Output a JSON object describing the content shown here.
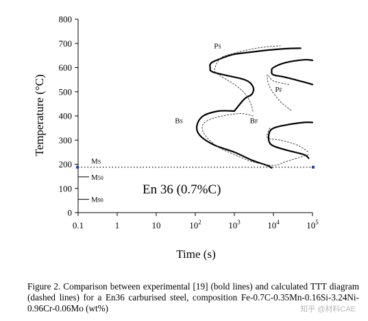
{
  "chart_data": {
    "type": "line",
    "xlabel": "Time (s)",
    "ylabel": "Temperature (°C)",
    "xscale": "log",
    "xlim": [
      0.1,
      100000
    ],
    "ylim": [
      0,
      800
    ],
    "x_ticks": [
      {
        "value": 0.1,
        "base": "0.1",
        "exp": ""
      },
      {
        "value": 1,
        "base": "1",
        "exp": ""
      },
      {
        "value": 10,
        "base": "10",
        "exp": ""
      },
      {
        "value": 100,
        "base": "10",
        "exp": "2"
      },
      {
        "value": 1000,
        "base": "10",
        "exp": "3"
      },
      {
        "value": 10000,
        "base": "10",
        "exp": "4"
      },
      {
        "value": 100000,
        "base": "10",
        "exp": "5"
      }
    ],
    "y_ticks": [
      0,
      100,
      200,
      300,
      400,
      500,
      600,
      700,
      800
    ],
    "annotation": "En 36 (0.7%C)",
    "grid": false,
    "series": [
      {
        "style": "bold",
        "x": [
          1000,
          1800,
          2800,
          3000,
          1800,
          300,
          240,
          260,
          500,
          1000,
          3000,
          7000,
          20000,
          50000
        ],
        "y": [
          420,
          470,
          490,
          520,
          550,
          580,
          600,
          620,
          640,
          655,
          665,
          672,
          678,
          680
        ]
      },
      {
        "style": "bold",
        "x": [
          100000,
          60000,
          20000,
          10000,
          9000,
          10000,
          20000,
          60000,
          100000
        ],
        "y": [
          630,
          632,
          620,
          600,
          585,
          570,
          560,
          540,
          530
        ]
      },
      {
        "style": "bold",
        "x": [
          1000,
          400,
          160,
          110,
          130,
          300,
          1000,
          3000,
          7000,
          9000
        ],
        "y": [
          420,
          420,
          400,
          360,
          320,
          280,
          250,
          215,
          195,
          185
        ]
      },
      {
        "style": "bold",
        "x": [
          100000,
          60000,
          20000,
          9000,
          7500,
          9000,
          20000,
          60000,
          80000
        ],
        "y": [
          373,
          373,
          362,
          345,
          310,
          280,
          260,
          240,
          225
        ]
      },
      {
        "style": "dashed",
        "x": [
          3000,
          2500,
          1800,
          1000,
          500,
          330,
          320,
          450,
          1000,
          2500,
          6000,
          15000
        ],
        "y": [
          420,
          460,
          495,
          530,
          560,
          580,
          600,
          640,
          660,
          675,
          685,
          690
        ]
      },
      {
        "style": "dashed",
        "x": [
          25000,
          10000,
          7000,
          8000,
          15000,
          30000
        ],
        "y": [
          530,
          545,
          570,
          520,
          460,
          420
        ]
      },
      {
        "style": "dashed",
        "x": [
          3000,
          1500,
          500,
          200,
          150,
          200,
          400,
          1000,
          3000,
          10000,
          20000,
          40000,
          80000
        ],
        "y": [
          400,
          410,
          400,
          380,
          350,
          310,
          270,
          240,
          210,
          195,
          210,
          225,
          240
        ]
      },
      {
        "style": "dashed",
        "x": [
          8000,
          7000,
          15000,
          40000,
          80000
        ],
        "y": [
          350,
          310,
          300,
          280,
          250
        ]
      }
    ],
    "reference_lines": [
      {
        "label": "Ms",
        "label_base": "M",
        "label_sub": "S",
        "value": 188,
        "style": "dotted"
      },
      {
        "label": "M50",
        "label_base": "M",
        "label_sub": "50",
        "value": 148,
        "style": "solid"
      },
      {
        "label": "M90",
        "label_base": "M",
        "label_sub": "90",
        "value": 55,
        "style": "solid"
      }
    ],
    "curve_labels": [
      {
        "base": "P",
        "sub": "S",
        "x": 300,
        "y": 680
      },
      {
        "base": "P",
        "sub": "F",
        "x": 11000,
        "y": 500
      },
      {
        "base": "B",
        "sub": "S",
        "x": 30,
        "y": 370
      },
      {
        "base": "B",
        "sub": "F",
        "x": 2500,
        "y": 370
      }
    ],
    "accent_color": "#1f3fa0"
  },
  "caption": "Figure 2. Comparison between experimental [19] (bold lines) and calculated TTT diagram (dashed lines) for a En36 carburised steel, composition Fe-0.7C-0.35Mn-0.16Si-3.24Ni-0.96Cr-0.06Mo (wt%)",
  "watermark": "知乎 @材料CAE"
}
